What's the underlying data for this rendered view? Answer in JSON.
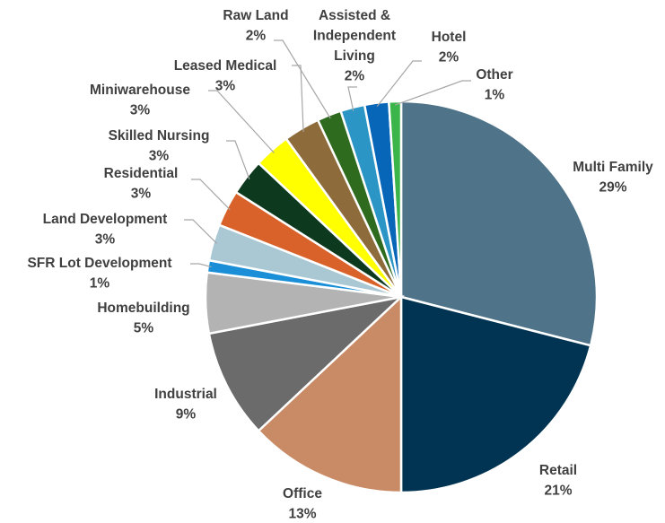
{
  "chart_data": {
    "type": "pie",
    "categories": [
      "Multi Family",
      "Retail",
      "Office",
      "Industrial",
      "Homebuilding",
      "SFR Lot Development",
      "Land Development",
      "Residential",
      "Skilled Nursing",
      "Miniwarehouse",
      "Leased Medical",
      "Raw Land",
      "Assisted & Independent Living",
      "Hotel",
      "Other"
    ],
    "values": [
      29,
      21,
      13,
      9,
      5,
      1,
      3,
      3,
      3,
      3,
      3,
      2,
      2,
      2,
      1
    ],
    "value_labels": [
      "29%",
      "21%",
      "13%",
      "9%",
      "5%",
      "1%",
      "3%",
      "3%",
      "3%",
      "3%",
      "3%",
      "2%",
      "2%",
      "2%",
      "1%"
    ],
    "colors": [
      "#4f7489",
      "#003452",
      "#c98b66",
      "#6b6b6b",
      "#b3b3b3",
      "#1a8fd8",
      "#a9c8d4",
      "#d9622b",
      "#0d3a1f",
      "#ffff00",
      "#8d6b3a",
      "#2e6b1f",
      "#2b95c6",
      "#0866b8",
      "#3bb54a"
    ]
  }
}
